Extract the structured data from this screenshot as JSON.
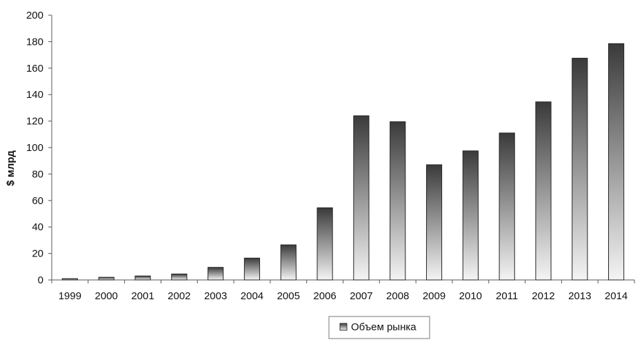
{
  "chart_data": {
    "type": "bar",
    "title": "",
    "xlabel": "",
    "ylabel": "$ млрд",
    "categories": [
      "1999",
      "2000",
      "2001",
      "2002",
      "2003",
      "2004",
      "2005",
      "2006",
      "2007",
      "2008",
      "2009",
      "2010",
      "2011",
      "2012",
      "2013",
      "2014"
    ],
    "series": [
      {
        "name": "Объем рынка",
        "values": [
          1,
          2,
          3,
          4.5,
          9.5,
          16.5,
          26.5,
          54.5,
          124,
          119.5,
          87,
          97.5,
          111,
          134.5,
          167.5,
          178.5
        ]
      }
    ],
    "ylim": [
      0,
      200
    ],
    "yticks": [
      0,
      20,
      40,
      60,
      80,
      100,
      120,
      140,
      160,
      180,
      200
    ],
    "grid": false,
    "legend_position": "bottom-center",
    "bar_color_top": "#3a3a3a",
    "bar_color_bottom": "#f4f4f4",
    "axis_color": "#555555"
  }
}
